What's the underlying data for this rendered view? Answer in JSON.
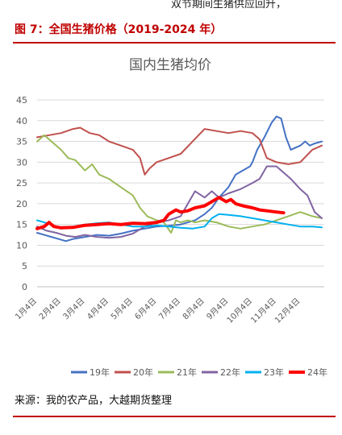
{
  "header": {
    "top_text": "双节期间生猪供应回升，",
    "figure_title": "图 7：全国生猪价格（2019-2024 年）"
  },
  "footer": {
    "source": "来源：我的农产品，大越期货整理"
  },
  "colors": {
    "accent": "#c00000",
    "grid": "#d9d9d9",
    "axis_text": "#595959"
  },
  "chart_data": {
    "type": "line",
    "title": "国内生猪均价",
    "ylim": [
      0,
      45
    ],
    "yticks": [
      0,
      5,
      10,
      15,
      20,
      25,
      30,
      35,
      40,
      45
    ],
    "grid": "horizontal",
    "legend_position": "bottom",
    "x_categories": [
      "1月4日",
      "2月4日",
      "3月4日",
      "4月4日",
      "5月4日",
      "6月4日",
      "7月4日",
      "8月4日",
      "9月4日",
      "10月4日",
      "11月4日",
      "12月4日"
    ],
    "x_domain": [
      0,
      12
    ],
    "series": [
      {
        "name": "19年",
        "color": "#4472c4",
        "width": 2,
        "x": [
          0,
          0.3,
          0.6,
          0.9,
          1.2,
          1.5,
          2.0,
          2.5,
          3.0,
          3.5,
          4.0,
          4.5,
          5.0,
          5.5,
          6.0,
          6.3,
          6.6,
          7.0,
          7.3,
          7.6,
          8.0,
          8.3,
          8.6,
          8.9,
          9.0,
          9.2,
          9.5,
          9.8,
          10.0,
          10.2,
          10.4,
          10.6,
          10.8,
          11.0,
          11.2,
          11.4,
          11.6,
          11.9
        ],
        "y": [
          13,
          12.5,
          12,
          11.5,
          11,
          11.5,
          12,
          12.5,
          12.3,
          12.8,
          13.5,
          14,
          14.5,
          14.7,
          15,
          15.5,
          16,
          17.5,
          19,
          21.5,
          24,
          27,
          28,
          29,
          30,
          33,
          36,
          39.5,
          41,
          40.5,
          36,
          33,
          33.5,
          34,
          35,
          34,
          34.5,
          35
        ]
      },
      {
        "name": "20年",
        "color": "#c0504d",
        "width": 2,
        "x": [
          0,
          0.5,
          1.0,
          1.5,
          1.8,
          2.2,
          2.6,
          3.0,
          3.5,
          4.0,
          4.3,
          4.5,
          4.7,
          5.0,
          5.5,
          6.0,
          6.5,
          7.0,
          7.5,
          8.0,
          8.5,
          9.0,
          9.3,
          9.6,
          10.0,
          10.5,
          11.0,
          11.5,
          11.9
        ],
        "y": [
          36,
          36.5,
          37,
          38,
          38.3,
          37,
          36.5,
          35,
          34,
          33,
          31,
          27,
          28.5,
          30,
          31,
          32,
          35,
          38,
          37.5,
          37,
          37.5,
          37,
          35.5,
          31,
          30,
          29.5,
          30,
          33,
          34
        ]
      },
      {
        "name": "21年",
        "color": "#9bbb59",
        "width": 2,
        "x": [
          0,
          0.3,
          0.6,
          1.0,
          1.3,
          1.6,
          2.0,
          2.3,
          2.6,
          3.0,
          3.5,
          4.0,
          4.3,
          4.6,
          5.0,
          5.3,
          5.6,
          5.8,
          6.0,
          6.3,
          6.6,
          7.0,
          7.5,
          8.0,
          8.5,
          9.0,
          9.5,
          10.0,
          10.5,
          11.0,
          11.5,
          11.9
        ],
        "y": [
          35,
          36.5,
          35,
          33,
          31,
          30.5,
          28,
          29.5,
          27,
          26,
          24,
          22,
          19,
          17,
          16,
          15.5,
          13,
          16,
          15.5,
          16,
          15.5,
          16,
          15.5,
          14.5,
          14,
          14.5,
          15,
          16,
          17,
          18,
          17,
          16.5
        ]
      },
      {
        "name": "22年",
        "color": "#8064a2",
        "width": 2,
        "x": [
          0,
          0.4,
          0.8,
          1.2,
          1.6,
          2.0,
          2.5,
          3.0,
          3.5,
          4.0,
          4.5,
          5.0,
          5.5,
          6.0,
          6.3,
          6.6,
          7.0,
          7.3,
          7.6,
          8.0,
          8.5,
          9.0,
          9.3,
          9.6,
          10.0,
          10.3,
          10.6,
          11.0,
          11.3,
          11.6,
          11.9
        ],
        "y": [
          14.5,
          13.5,
          13,
          12.3,
          12,
          12.5,
          12,
          11.8,
          12,
          12.8,
          14.5,
          15.5,
          16,
          17,
          20,
          23,
          21.5,
          23,
          21.5,
          22.5,
          23.5,
          25,
          26,
          29,
          29,
          27.5,
          26,
          23.5,
          22,
          18,
          16.5
        ]
      },
      {
        "name": "23年",
        "color": "#00b0f0",
        "width": 2,
        "x": [
          0,
          0.3,
          0.6,
          1.0,
          1.5,
          2.0,
          2.5,
          3.0,
          3.5,
          4.0,
          4.5,
          5.0,
          5.5,
          6.0,
          6.5,
          7.0,
          7.3,
          7.6,
          8.0,
          8.5,
          9.0,
          9.5,
          10.0,
          10.5,
          11.0,
          11.5,
          11.9
        ],
        "y": [
          16,
          15.5,
          15,
          14,
          14.5,
          15,
          15.3,
          15.5,
          15,
          14.5,
          14.5,
          14.8,
          14.5,
          14.2,
          14,
          14.5,
          16.5,
          17.5,
          17.3,
          17,
          16.5,
          16,
          15.5,
          15,
          14.5,
          14.5,
          14.3
        ]
      },
      {
        "name": "24年",
        "color": "#ff0000",
        "width": 4,
        "x": [
          0,
          0.3,
          0.5,
          0.7,
          1.0,
          1.5,
          2.0,
          2.5,
          3.0,
          3.5,
          4.0,
          4.5,
          5.0,
          5.3,
          5.5,
          5.8,
          6.0,
          6.3,
          6.6,
          7.0,
          7.3,
          7.6,
          7.9,
          8.1,
          8.3,
          8.6,
          9.0,
          9.3,
          9.6,
          10.0,
          10.3
        ],
        "y": [
          14,
          14.5,
          15.5,
          14.5,
          14.2,
          14.3,
          14.8,
          15,
          15.2,
          15,
          15.3,
          15.2,
          15.5,
          16,
          17.5,
          18.5,
          18,
          18.3,
          19,
          19.5,
          20.5,
          21.5,
          20.5,
          21,
          20,
          19.5,
          19,
          18.5,
          18.3,
          18,
          17.8
        ]
      }
    ]
  }
}
